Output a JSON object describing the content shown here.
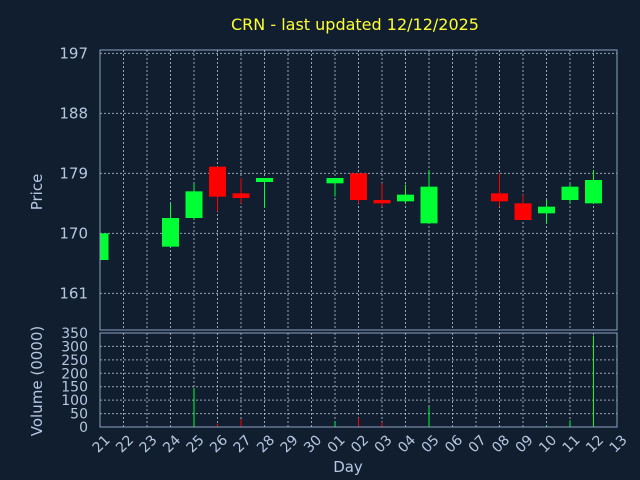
{
  "chart_data": {
    "type": "candlestick",
    "title": "CRN - last updated 12/12/2025",
    "xlabel": "Day",
    "price_panel": {
      "ylabel": "Price",
      "ylim": [
        155.5,
        197.5
      ],
      "yticks": [
        161,
        170,
        179,
        188,
        197
      ]
    },
    "volume_panel": {
      "ylabel": "Volume (0000)",
      "ylim": [
        0,
        350
      ],
      "yticks": [
        0,
        50,
        100,
        150,
        200,
        250,
        300,
        350
      ]
    },
    "x_labels": [
      "21",
      "22",
      "23",
      "24",
      "25",
      "26",
      "27",
      "28",
      "29",
      "30",
      "01",
      "02",
      "03",
      "04",
      "05",
      "06",
      "07",
      "08",
      "09",
      "10",
      "11",
      "12",
      "13"
    ],
    "colors": {
      "up": "#00ff33",
      "down": "#ff0000",
      "background": "#101e30",
      "title": "#ffff33",
      "text": "#b8c7e0"
    },
    "candles": [
      {
        "x": 0.0,
        "open": 166.0,
        "high": 170.0,
        "low": 166.0,
        "close": 170.0
      },
      {
        "x": 3.0,
        "open": 168.0,
        "high": 174.5,
        "low": 168.0,
        "close": 172.3
      },
      {
        "x": 4.0,
        "open": 172.3,
        "high": 177.5,
        "low": 172.0,
        "close": 176.3
      },
      {
        "x": 5.0,
        "open": 180.0,
        "high": 180.0,
        "low": 173.3,
        "close": 175.5
      },
      {
        "x": 6.0,
        "open": 176.0,
        "high": 178.3,
        "low": 174.5,
        "close": 175.3
      },
      {
        "x": 7.0,
        "open": 177.7,
        "high": 178.3,
        "low": 173.8,
        "close": 178.3
      },
      {
        "x": 10.0,
        "open": 177.5,
        "high": 178.3,
        "low": 175.5,
        "close": 178.3
      },
      {
        "x": 11.0,
        "open": 179.0,
        "high": 179.0,
        "low": 174.5,
        "close": 175.0
      },
      {
        "x": 12.0,
        "open": 175.0,
        "high": 177.5,
        "low": 174.0,
        "close": 174.5
      },
      {
        "x": 13.0,
        "open": 174.8,
        "high": 177.3,
        "low": 174.5,
        "close": 175.8
      },
      {
        "x": 14.0,
        "open": 171.5,
        "high": 179.5,
        "low": 171.5,
        "close": 177.0
      },
      {
        "x": 17.0,
        "open": 176.0,
        "high": 179.0,
        "low": 174.0,
        "close": 174.8
      },
      {
        "x": 18.0,
        "open": 174.5,
        "high": 175.8,
        "low": 172.0,
        "close": 172.0
      },
      {
        "x": 19.0,
        "open": 173.0,
        "high": 175.0,
        "low": 171.5,
        "close": 174.0
      },
      {
        "x": 20.0,
        "open": 175.0,
        "high": 177.5,
        "low": 174.5,
        "close": 177.0
      },
      {
        "x": 21.0,
        "open": 174.5,
        "high": 179.5,
        "low": 174.5,
        "close": 178.0
      }
    ],
    "volumes": [
      {
        "x": 4.0,
        "value": 145
      },
      {
        "x": 5.0,
        "value": 12
      },
      {
        "x": 6.0,
        "value": 30
      },
      {
        "x": 10.0,
        "value": 20
      },
      {
        "x": 11.0,
        "value": 35
      },
      {
        "x": 12.0,
        "value": 18
      },
      {
        "x": 14.0,
        "value": 75
      },
      {
        "x": 19.0,
        "value": 5
      },
      {
        "x": 20.0,
        "value": 25
      },
      {
        "x": 21.0,
        "value": 340
      }
    ]
  }
}
